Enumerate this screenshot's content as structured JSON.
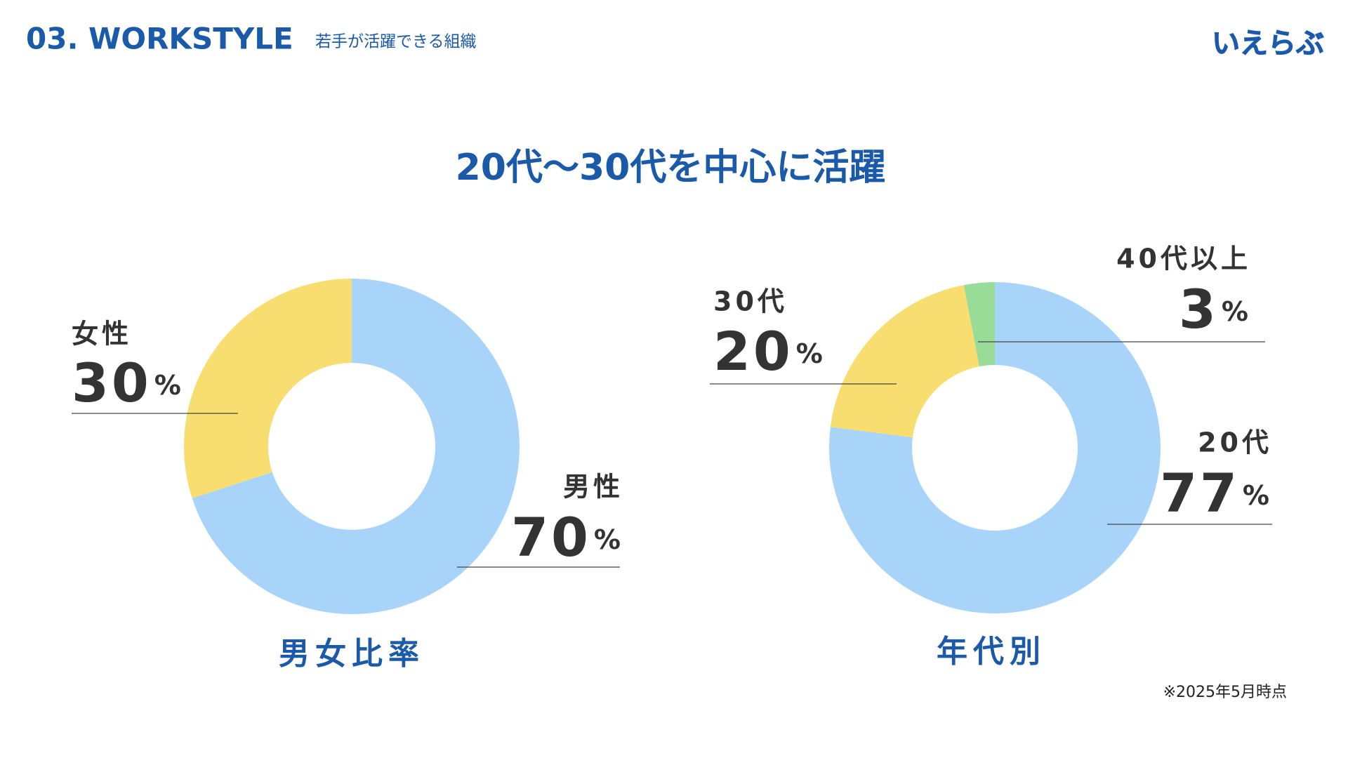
{
  "header": {
    "section": "03. WORKSTYLE",
    "subtitle": "若手が活躍できる組織",
    "logo": "いえらぶ"
  },
  "headline": "20代〜30代を中心に活躍",
  "chart_data": [
    {
      "type": "donut",
      "title": "男女比率",
      "categories": [
        "男性",
        "女性"
      ],
      "values": [
        70,
        30
      ],
      "unit": "%",
      "colors": [
        "#a8d4fa",
        "#f8de70"
      ]
    },
    {
      "type": "donut",
      "title": "年代別",
      "categories": [
        "20代",
        "30代",
        "40代以上"
      ],
      "values": [
        77,
        20,
        3
      ],
      "unit": "%",
      "colors": [
        "#a8d4fa",
        "#f8de70",
        "#98dc98"
      ]
    }
  ],
  "footnote": "※2025年5月時点"
}
